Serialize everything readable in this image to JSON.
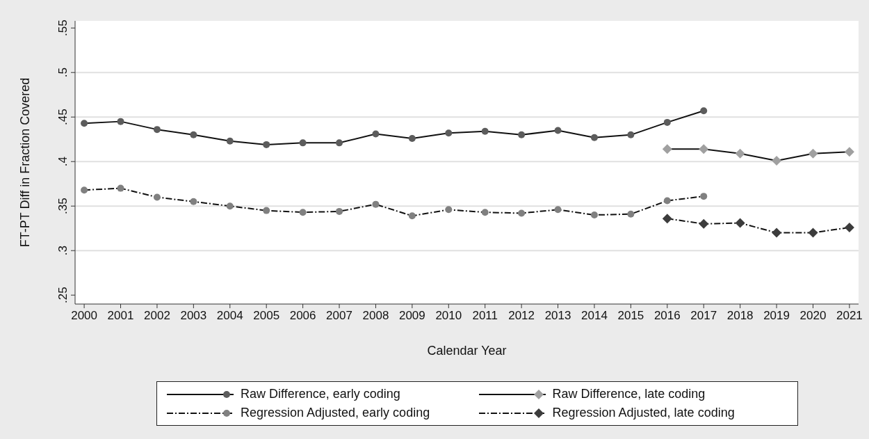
{
  "chart_data": {
    "type": "line",
    "xlabel": "Calendar Year",
    "ylabel": "FT-PT Diff in Fraction Covered",
    "x": [
      2000,
      2001,
      2002,
      2003,
      2004,
      2005,
      2006,
      2007,
      2008,
      2009,
      2010,
      2011,
      2012,
      2013,
      2014,
      2015,
      2016,
      2017,
      2018,
      2019,
      2020,
      2021
    ],
    "series": [
      {
        "name": "Raw Difference, early coding",
        "color": "#5c5c5c",
        "marker": "circle",
        "line_style": "solid",
        "values": [
          0.443,
          0.445,
          0.436,
          0.43,
          0.423,
          0.419,
          0.421,
          0.421,
          0.431,
          0.426,
          0.432,
          0.434,
          0.43,
          0.435,
          0.427,
          0.43,
          0.444,
          0.457,
          null,
          null,
          null,
          null
        ]
      },
      {
        "name": "Raw Difference, late coding",
        "color": "#a0a0a0",
        "marker": "diamond",
        "line_style": "solid",
        "values": [
          null,
          null,
          null,
          null,
          null,
          null,
          null,
          null,
          null,
          null,
          null,
          null,
          null,
          null,
          null,
          null,
          0.414,
          0.414,
          0.409,
          0.401,
          0.409,
          0.411
        ]
      },
      {
        "name": "Regression Adjusted, early coding",
        "color": "#808080",
        "marker": "circle",
        "line_style": "dashed",
        "values": [
          0.368,
          0.37,
          0.36,
          0.355,
          0.35,
          0.345,
          0.343,
          0.344,
          0.352,
          0.339,
          0.346,
          0.343,
          0.342,
          0.346,
          0.34,
          0.341,
          0.356,
          0.361,
          null,
          null,
          null,
          null
        ]
      },
      {
        "name": "Regression Adjusted, late coding",
        "color": "#3c3c3c",
        "marker": "diamond",
        "line_style": "dashed",
        "values": [
          null,
          null,
          null,
          null,
          null,
          null,
          null,
          null,
          null,
          null,
          null,
          null,
          null,
          null,
          null,
          null,
          0.336,
          0.33,
          0.331,
          0.32,
          0.32,
          0.326
        ]
      }
    ],
    "xlim": [
      1999.75,
      2021.25
    ],
    "xticks": [
      2000,
      2001,
      2002,
      2003,
      2004,
      2005,
      2006,
      2007,
      2008,
      2009,
      2010,
      2011,
      2012,
      2013,
      2014,
      2015,
      2016,
      2017,
      2018,
      2019,
      2020,
      2021
    ],
    "ylim": [
      0.24,
      0.558
    ],
    "yticks": [
      {
        "value": 0.25,
        "label": ".25"
      },
      {
        "value": 0.3,
        "label": ".3"
      },
      {
        "value": 0.35,
        "label": ".35"
      },
      {
        "value": 0.4,
        "label": ".4"
      },
      {
        "value": 0.45,
        "label": ".45"
      },
      {
        "value": 0.5,
        "label": ".5"
      },
      {
        "value": 0.55,
        "label": ".55"
      }
    ],
    "grid": "y",
    "legend": "bottom"
  }
}
